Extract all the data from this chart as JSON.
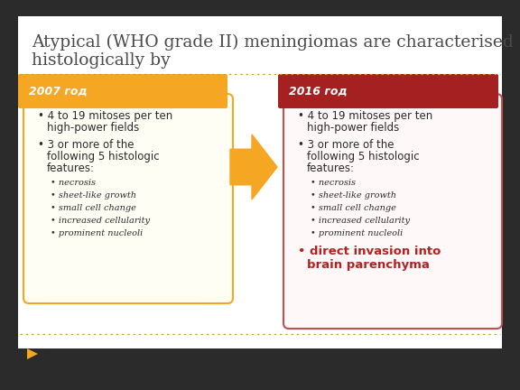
{
  "title_line1": "Atypical (WHO grade II) meningiomas are characterised",
  "title_line2": "histologically by",
  "title_fontsize": 13.5,
  "title_color": "#4a4a4a",
  "background_color": "#ffffff",
  "left_header": "2007 год",
  "right_header": "2016 год",
  "left_header_bg": "#F5A623",
  "right_header_bg": "#A52020",
  "header_text_color": "#ffffff",
  "left_box_border": "#F5A623",
  "right_box_border": "#C0504D",
  "box_bg": "#ffffff",
  "left_box_bg": "#fffef5",
  "right_box_bg": "#fff8f8",
  "arrow_color": "#F5A623",
  "left_subbullets": [
    "necrosis",
    "sheet-like growth",
    "small cell change",
    "increased cellularity",
    "prominent nucleoli"
  ],
  "right_subbullets": [
    "necrosis",
    "sheet-like growth",
    "small cell change",
    "increased cellularity",
    "prominent nucleoli"
  ],
  "right_bullet_extra_line1": "direct invasion into",
  "right_bullet_extra_line2": "brain parenchyma",
  "right_bullet_extra_color": "#B22222",
  "footer_arrow_color": "#F5A623",
  "outer_bg": "#2b2b2b",
  "dotted_line_color": "#c8a020"
}
